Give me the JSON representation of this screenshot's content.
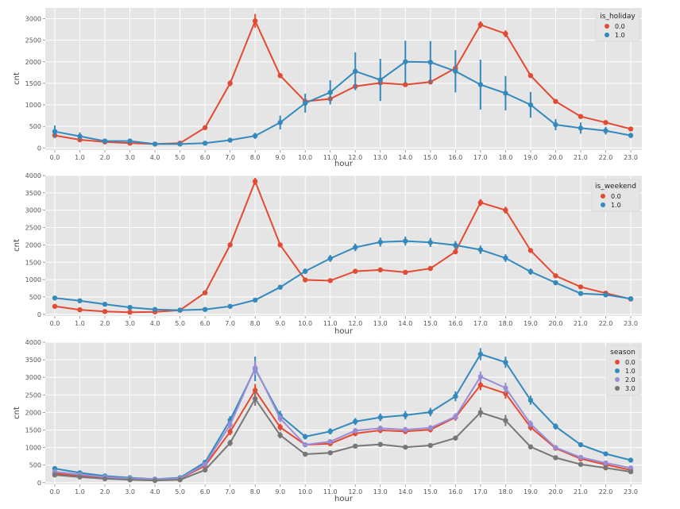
{
  "colors": {
    "background": "#e5e5e5",
    "grid": "#ffffff",
    "tick_text": "#555555",
    "series_red": "#e24a33",
    "series_blue": "#348abd",
    "series_purple": "#988ed5",
    "series_gray": "#777777"
  },
  "chart_data": [
    {
      "type": "line",
      "xlabel": "hour",
      "ylabel": "cnt",
      "ylim": [
        -50,
        3250
      ],
      "yticks": [
        0,
        500,
        1000,
        1500,
        2000,
        2500,
        3000
      ],
      "x": [
        "0.0",
        "1.0",
        "2.0",
        "3.0",
        "4.0",
        "5.0",
        "6.0",
        "7.0",
        "8.0",
        "9.0",
        "10.0",
        "11.0",
        "12.0",
        "13.0",
        "14.0",
        "15.0",
        "16.0",
        "17.0",
        "18.0",
        "19.0",
        "20.0",
        "21.0",
        "22.0",
        "23.0"
      ],
      "grid": true,
      "legend": {
        "title": "is_holiday",
        "placement": "top-right"
      },
      "series": [
        {
          "name": "0.0",
          "color": "#e24a33",
          "values": [
            290,
            190,
            140,
            110,
            90,
            110,
            470,
            1500,
            2950,
            1680,
            1080,
            1140,
            1430,
            1510,
            1470,
            1530,
            1850,
            2860,
            2650,
            1680,
            1080,
            730,
            590,
            440
          ],
          "error": [
            30,
            20,
            15,
            15,
            10,
            15,
            30,
            70,
            160,
            60,
            40,
            40,
            50,
            50,
            50,
            50,
            60,
            80,
            80,
            50,
            40,
            30,
            25,
            20
          ]
        },
        {
          "name": "1.0",
          "color": "#348abd",
          "values": [
            380,
            270,
            160,
            160,
            90,
            90,
            110,
            180,
            280,
            590,
            1040,
            1290,
            1780,
            1580,
            2000,
            1990,
            1780,
            1470,
            1270,
            1000,
            540,
            460,
            400,
            290
          ],
          "error": [
            140,
            90,
            40,
            40,
            30,
            30,
            30,
            50,
            70,
            160,
            220,
            280,
            440,
            490,
            490,
            490,
            490,
            580,
            400,
            300,
            130,
            130,
            90,
            60
          ]
        }
      ]
    },
    {
      "type": "line",
      "xlabel": "hour",
      "ylabel": "cnt",
      "ylim": [
        -50,
        4000
      ],
      "yticks": [
        0,
        500,
        1000,
        1500,
        2000,
        2500,
        3000,
        3500,
        4000
      ],
      "x": [
        "0.0",
        "1.0",
        "2.0",
        "3.0",
        "4.0",
        "5.0",
        "6.0",
        "7.0",
        "8.0",
        "9.0",
        "10.0",
        "11.0",
        "12.0",
        "13.0",
        "14.0",
        "15.0",
        "16.0",
        "17.0",
        "18.0",
        "19.0",
        "20.0",
        "21.0",
        "22.0",
        "23.0"
      ],
      "grid": true,
      "legend": {
        "title": "is_weekend",
        "placement": "top-right"
      },
      "series": [
        {
          "name": "0.0",
          "color": "#e24a33",
          "values": [
            230,
            130,
            80,
            60,
            70,
            120,
            620,
            2000,
            3830,
            2000,
            990,
            970,
            1240,
            1280,
            1210,
            1320,
            1800,
            3220,
            3000,
            1840,
            1110,
            790,
            610,
            440
          ],
          "error": [
            20,
            15,
            10,
            10,
            10,
            15,
            40,
            70,
            100,
            60,
            40,
            40,
            50,
            50,
            50,
            50,
            60,
            100,
            100,
            60,
            40,
            30,
            25,
            20
          ]
        },
        {
          "name": "1.0",
          "color": "#348abd",
          "values": [
            470,
            390,
            290,
            200,
            140,
            120,
            140,
            230,
            410,
            780,
            1240,
            1610,
            1930,
            2080,
            2110,
            2070,
            1990,
            1860,
            1620,
            1230,
            910,
            600,
            560,
            450
          ],
          "error": [
            30,
            25,
            20,
            20,
            15,
            15,
            20,
            30,
            40,
            60,
            80,
            100,
            110,
            130,
            130,
            130,
            120,
            120,
            110,
            90,
            70,
            50,
            40,
            35
          ]
        }
      ]
    },
    {
      "type": "line",
      "xlabel": "hour",
      "ylabel": "cnt",
      "ylim": [
        -50,
        4000
      ],
      "yticks": [
        0,
        500,
        1000,
        1500,
        2000,
        2500,
        3000,
        3500,
        4000
      ],
      "x": [
        "0.0",
        "1.0",
        "2.0",
        "3.0",
        "4.0",
        "5.0",
        "6.0",
        "7.0",
        "8.0",
        "9.0",
        "10.0",
        "11.0",
        "12.0",
        "13.0",
        "14.0",
        "15.0",
        "16.0",
        "17.0",
        "18.0",
        "19.0",
        "20.0",
        "21.0",
        "22.0",
        "23.0"
      ],
      "grid": true,
      "legend": {
        "title": "season",
        "placement": "top-right"
      },
      "series": [
        {
          "name": "0.0",
          "color": "#e24a33",
          "values": [
            260,
            190,
            140,
            110,
            90,
            110,
            480,
            1450,
            2630,
            1580,
            1080,
            1110,
            1400,
            1490,
            1460,
            1510,
            1860,
            2780,
            2540,
            1580,
            980,
            680,
            510,
            360
          ],
          "error": [
            30,
            20,
            15,
            15,
            10,
            15,
            40,
            100,
            180,
            100,
            60,
            60,
            80,
            80,
            80,
            80,
            100,
            150,
            150,
            100,
            60,
            40,
            30,
            25
          ]
        },
        {
          "name": "1.0",
          "color": "#348abd",
          "values": [
            400,
            280,
            190,
            140,
            100,
            140,
            580,
            1780,
            3240,
            1910,
            1310,
            1460,
            1740,
            1860,
            1920,
            2010,
            2460,
            3660,
            3430,
            2350,
            1600,
            1080,
            820,
            640
          ],
          "error": [
            40,
            30,
            20,
            20,
            15,
            20,
            50,
            120,
            350,
            140,
            80,
            90,
            100,
            110,
            120,
            120,
            140,
            170,
            160,
            130,
            90,
            60,
            50,
            40
          ]
        },
        {
          "name": "2.0",
          "color": "#988ed5",
          "values": [
            310,
            230,
            160,
            120,
            100,
            120,
            520,
            1650,
            3270,
            1830,
            1080,
            1170,
            1480,
            1550,
            1510,
            1560,
            1880,
            3020,
            2700,
            1670,
            1000,
            720,
            560,
            420
          ],
          "error": [
            35,
            25,
            20,
            15,
            15,
            15,
            45,
            110,
            200,
            110,
            70,
            70,
            80,
            80,
            80,
            80,
            100,
            150,
            150,
            100,
            60,
            45,
            35,
            30
          ]
        },
        {
          "name": "3.0",
          "color": "#777777",
          "values": [
            220,
            160,
            110,
            80,
            60,
            80,
            360,
            1130,
            2390,
            1350,
            810,
            850,
            1040,
            1090,
            1010,
            1060,
            1270,
            2000,
            1770,
            1020,
            710,
            520,
            420,
            310
          ],
          "error": [
            25,
            20,
            15,
            10,
            10,
            10,
            30,
            90,
            200,
            90,
            50,
            50,
            60,
            60,
            60,
            60,
            70,
            140,
            160,
            70,
            45,
            35,
            30,
            25
          ]
        }
      ]
    }
  ]
}
